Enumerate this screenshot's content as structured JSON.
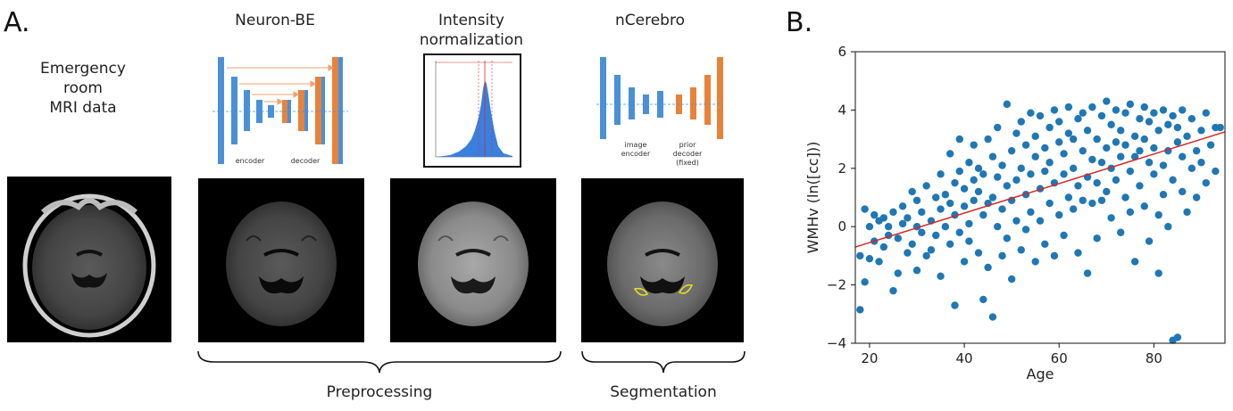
{
  "panel_a": {
    "letter": "A.",
    "input_label": [
      "Emergency",
      "room",
      "MRI data"
    ],
    "stages": {
      "neuron_be": {
        "title": "Neuron-BE",
        "encoder_label": "encoder",
        "decoder_label": "decoder"
      },
      "intensity": {
        "title_line1": "Intensity",
        "title_line2": "normalization"
      },
      "ncerebro": {
        "title": "nCerebro",
        "encoder_label_line1": "image",
        "encoder_label_line2": "encoder",
        "decoder_label_line1": "prior",
        "decoder_label_line2": "decoder",
        "decoder_label_line3": "(fixed)"
      }
    },
    "braces": {
      "preprocessing": "Preprocessing",
      "segmentation": "Segmentation"
    },
    "colors": {
      "encoder_blue": "#4a90d9",
      "decoder_orange": "#e8823a",
      "skip_arrow": "#f0a070",
      "histogram_blue": "#3a7fe0",
      "histogram_peak_line": "#d03030",
      "segmentation_outline": "#e8e020"
    }
  },
  "panel_b": {
    "letter": "B.",
    "chart_data": {
      "type": "scatter",
      "xlabel": "Age",
      "ylabel": "WMHv (ln([cc]))",
      "xlim": [
        17,
        95
      ],
      "ylim": [
        -4,
        6
      ],
      "xticks": [
        20,
        40,
        60,
        80
      ],
      "yticks": [
        -4,
        -2,
        0,
        2,
        4,
        6
      ],
      "grid": false,
      "point_color": "#1f77b4",
      "fit_line_color": "#d62728",
      "fit_line": {
        "x": [
          17,
          95
        ],
        "y": [
          -0.7,
          3.25
        ]
      },
      "points": [
        [
          18,
          -2.85
        ],
        [
          18,
          -1.0
        ],
        [
          19,
          -1.9
        ],
        [
          19,
          0.6
        ],
        [
          20,
          -1.1
        ],
        [
          20,
          0.0
        ],
        [
          21,
          -0.5
        ],
        [
          21,
          0.4
        ],
        [
          22,
          -1.2
        ],
        [
          22,
          0.2
        ],
        [
          23,
          -0.7
        ],
        [
          23,
          0.3
        ],
        [
          24,
          0.0
        ],
        [
          24,
          -0.3
        ],
        [
          25,
          -2.2
        ],
        [
          25,
          0.5
        ],
        [
          26,
          -0.4
        ],
        [
          26,
          -1.6
        ],
        [
          27,
          0.1
        ],
        [
          27,
          0.7
        ],
        [
          28,
          -0.9
        ],
        [
          28,
          0.3
        ],
        [
          29,
          -0.6
        ],
        [
          29,
          1.2
        ],
        [
          30,
          -1.5
        ],
        [
          30,
          0.0
        ],
        [
          30,
          0.9
        ],
        [
          31,
          -0.2
        ],
        [
          31,
          0.5
        ],
        [
          32,
          -1.0
        ],
        [
          32,
          1.4
        ],
        [
          33,
          0.2
        ],
        [
          33,
          -0.8
        ],
        [
          34,
          1.0
        ],
        [
          34,
          -0.3
        ],
        [
          35,
          0.6
        ],
        [
          35,
          -1.7
        ],
        [
          35,
          1.8
        ],
        [
          36,
          0.0
        ],
        [
          36,
          1.1
        ],
        [
          37,
          -0.6
        ],
        [
          37,
          0.8
        ],
        [
          37,
          2.5
        ],
        [
          38,
          -2.7
        ],
        [
          38,
          0.4
        ],
        [
          38,
          1.5
        ],
        [
          39,
          -0.2
        ],
        [
          39,
          1.9
        ],
        [
          39,
          3.0
        ],
        [
          40,
          0.7
        ],
        [
          40,
          -1.2
        ],
        [
          40,
          1.3
        ],
        [
          41,
          2.2
        ],
        [
          41,
          0.1
        ],
        [
          41,
          -0.5
        ],
        [
          42,
          1.6
        ],
        [
          42,
          0.9
        ],
        [
          42,
          2.8
        ],
        [
          43,
          -0.9
        ],
        [
          43,
          1.2
        ],
        [
          43,
          2.0
        ],
        [
          44,
          0.4
        ],
        [
          44,
          -2.5
        ],
        [
          44,
          1.8
        ],
        [
          45,
          3.0
        ],
        [
          45,
          0.8
        ],
        [
          45,
          -1.4
        ],
        [
          46,
          -3.1
        ],
        [
          46,
          2.4
        ],
        [
          46,
          1.0
        ],
        [
          47,
          0.0
        ],
        [
          47,
          1.7
        ],
        [
          47,
          3.4
        ],
        [
          48,
          -1.0
        ],
        [
          48,
          2.1
        ],
        [
          48,
          0.6
        ],
        [
          49,
          4.2
        ],
        [
          49,
          1.4
        ],
        [
          49,
          -0.4
        ],
        [
          50,
          2.6
        ],
        [
          50,
          0.9
        ],
        [
          50,
          -1.8
        ],
        [
          51,
          3.2
        ],
        [
          51,
          1.6
        ],
        [
          51,
          0.2
        ],
        [
          52,
          2.0
        ],
        [
          52,
          -0.8
        ],
        [
          52,
          3.6
        ],
        [
          53,
          1.1
        ],
        [
          53,
          2.8
        ],
        [
          53,
          -0.1
        ],
        [
          54,
          3.9
        ],
        [
          54,
          1.8
        ],
        [
          54,
          0.5
        ],
        [
          55,
          2.4
        ],
        [
          55,
          -1.2
        ],
        [
          55,
          3.1
        ],
        [
          56,
          1.3
        ],
        [
          56,
          3.8
        ],
        [
          56,
          0.2
        ],
        [
          57,
          2.7
        ],
        [
          57,
          -0.6
        ],
        [
          57,
          1.9
        ],
        [
          58,
          3.4
        ],
        [
          58,
          0.8
        ],
        [
          58,
          2.2
        ],
        [
          59,
          4.0
        ],
        [
          59,
          1.5
        ],
        [
          59,
          -1.0
        ],
        [
          60,
          2.9
        ],
        [
          60,
          0.4
        ],
        [
          60,
          3.6
        ],
        [
          61,
          1.8
        ],
        [
          61,
          2.5
        ],
        [
          61,
          -0.3
        ],
        [
          62,
          3.2
        ],
        [
          62,
          1.0
        ],
        [
          62,
          4.1
        ],
        [
          63,
          2.0
        ],
        [
          63,
          0.6
        ],
        [
          63,
          3.0
        ],
        [
          64,
          1.4
        ],
        [
          64,
          3.7
        ],
        [
          64,
          -0.9
        ],
        [
          65,
          2.6
        ],
        [
          65,
          0.9
        ],
        [
          65,
          3.9
        ],
        [
          66,
          1.7
        ],
        [
          66,
          3.3
        ],
        [
          66,
          -1.6
        ],
        [
          67,
          2.3
        ],
        [
          67,
          4.1
        ],
        [
          67,
          0.8
        ],
        [
          68,
          3.0
        ],
        [
          68,
          1.5
        ],
        [
          68,
          -0.4
        ],
        [
          69,
          3.8
        ],
        [
          69,
          2.2
        ],
        [
          69,
          0.9
        ],
        [
          70,
          4.3
        ],
        [
          70,
          2.7
        ],
        [
          70,
          1.2
        ],
        [
          71,
          3.5
        ],
        [
          71,
          0.3
        ],
        [
          71,
          2.0
        ],
        [
          72,
          4.0
        ],
        [
          72,
          1.6
        ],
        [
          72,
          2.9
        ],
        [
          73,
          3.3
        ],
        [
          73,
          -0.2
        ],
        [
          73,
          2.4
        ],
        [
          74,
          3.9
        ],
        [
          74,
          1.0
        ],
        [
          74,
          2.8
        ],
        [
          75,
          4.2
        ],
        [
          75,
          1.9
        ],
        [
          75,
          0.5
        ],
        [
          76,
          3.1
        ],
        [
          76,
          2.4
        ],
        [
          76,
          -1.2
        ],
        [
          77,
          3.7
        ],
        [
          77,
          1.4
        ],
        [
          77,
          2.6
        ],
        [
          78,
          4.1
        ],
        [
          78,
          0.7
        ],
        [
          78,
          3.0
        ],
        [
          79,
          2.2
        ],
        [
          79,
          3.6
        ],
        [
          79,
          -0.5
        ],
        [
          80,
          3.9
        ],
        [
          80,
          1.8
        ],
        [
          80,
          2.7
        ],
        [
          81,
          3.3
        ],
        [
          81,
          0.4
        ],
        [
          81,
          -1.6
        ],
        [
          82,
          4.0
        ],
        [
          82,
          2.1
        ],
        [
          82,
          1.1
        ],
        [
          83,
          3.5
        ],
        [
          83,
          0.0
        ],
        [
          83,
          2.6
        ],
        [
          84,
          3.8
        ],
        [
          84,
          -3.9
        ],
        [
          84,
          1.6
        ],
        [
          85,
          2.9
        ],
        [
          85,
          -3.8
        ],
        [
          85,
          3.4
        ],
        [
          86,
          4.0
        ],
        [
          86,
          1.2
        ],
        [
          86,
          2.4
        ],
        [
          87,
          3.1
        ],
        [
          87,
          0.5
        ],
        [
          88,
          3.7
        ],
        [
          88,
          2.0
        ],
        [
          89,
          2.6
        ],
        [
          89,
          1.0
        ],
        [
          90,
          3.3
        ],
        [
          90,
          2.2
        ],
        [
          91,
          3.9
        ],
        [
          91,
          1.5
        ],
        [
          92,
          2.8
        ],
        [
          93,
          3.4
        ],
        [
          93,
          1.9
        ],
        [
          94,
          3.4
        ]
      ]
    }
  }
}
